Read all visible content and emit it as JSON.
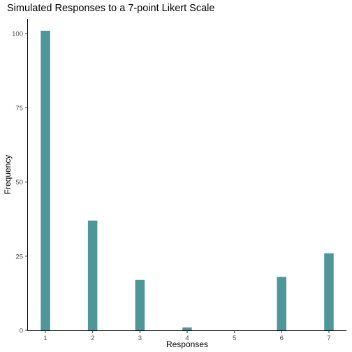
{
  "chart_data": {
    "type": "bar",
    "title": "Simulated Responses to a 7-point Likert Scale",
    "xlabel": "Responses",
    "ylabel": "Frequency",
    "categories": [
      1,
      2,
      3,
      4,
      5,
      6,
      7
    ],
    "values": [
      101,
      37,
      17,
      1,
      0,
      18,
      26
    ],
    "x_ticks": [
      "1",
      "2",
      "3",
      "4",
      "5",
      "6",
      "7"
    ],
    "y_ticks": [
      0,
      25,
      50,
      75,
      100
    ],
    "ylim": [
      0,
      105
    ],
    "xlim": [
      0.63,
      7.37
    ],
    "bar_width": 0.2,
    "bar_color": "#4e9699",
    "grid": false
  }
}
